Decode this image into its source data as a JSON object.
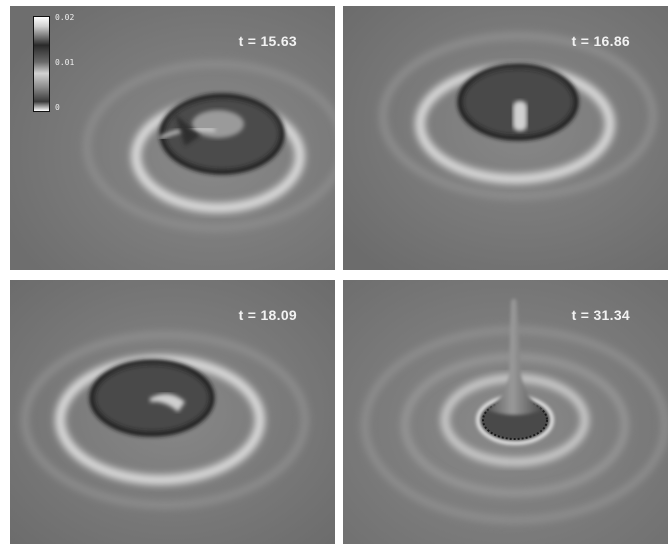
{
  "panels": [
    {
      "time_label": "t = 15.63"
    },
    {
      "time_label": "t = 16.86"
    },
    {
      "time_label": "t = 18.09"
    },
    {
      "time_label": "t = 31.34"
    }
  ],
  "colorbar": {
    "ticks": [
      "0.02",
      "0.01",
      "0"
    ]
  },
  "colors": {
    "background_gray": "#7d7d7d",
    "label_white": "#f2f2f2"
  }
}
